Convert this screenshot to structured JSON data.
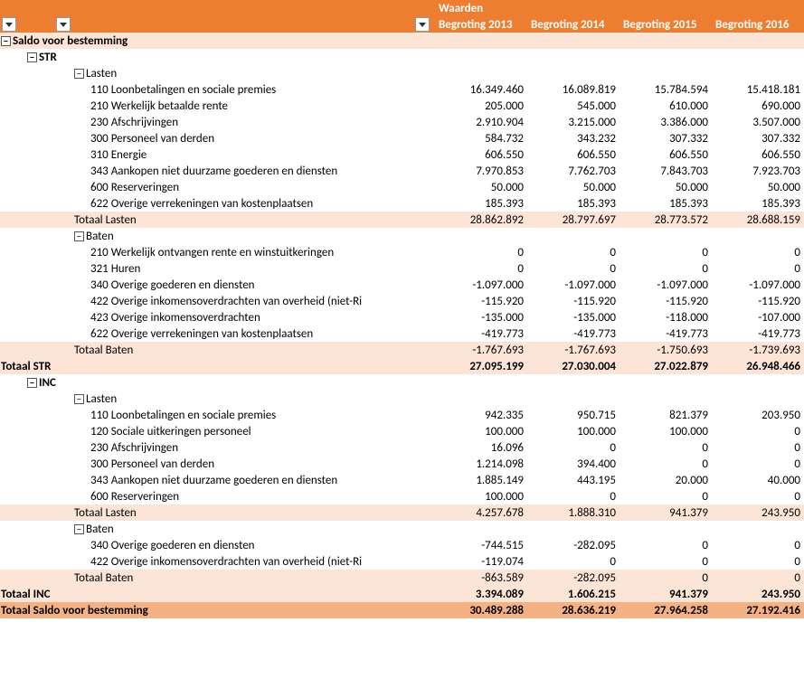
{
  "header": {
    "waarden": "Waarden",
    "cols": [
      "Begroting 2013",
      "Begroting 2014",
      "Begroting 2015",
      "Begroting  2016"
    ]
  },
  "topGroup": {
    "expander": "−",
    "label": "Saldo voor bestemming"
  },
  "sections": [
    {
      "expander": "−",
      "code": "STR",
      "groups": [
        {
          "expander": "−",
          "label": "Lasten",
          "items": [
            {
              "label": "110 Loonbetalingen en sociale premies",
              "vals": [
                "16.349.460",
                "16.089.819",
                "15.784.594",
                "15.418.181"
              ]
            },
            {
              "label": "210 Werkelijk betaalde rente",
              "vals": [
                "205.000",
                "545.000",
                "610.000",
                "690.000"
              ]
            },
            {
              "label": "230 Afschrijvingen",
              "vals": [
                "2.910.904",
                "3.215.000",
                "3.386.000",
                "3.507.000"
              ]
            },
            {
              "label": "300 Personeel van derden",
              "vals": [
                "584.732",
                "343.232",
                "307.332",
                "307.332"
              ]
            },
            {
              "label": "310 Energie",
              "vals": [
                "606.550",
                "606.550",
                "606.550",
                "606.550"
              ]
            },
            {
              "label": "343 Aankopen niet duurzame goederen en diensten",
              "vals": [
                "7.970.853",
                "7.762.703",
                "7.843.703",
                "7.923.703"
              ]
            },
            {
              "label": "600 Reserveringen",
              "vals": [
                "50.000",
                "50.000",
                "50.000",
                "50.000"
              ]
            },
            {
              "label": "622 Overige verrekeningen van kostenplaatsen",
              "vals": [
                "185.393",
                "185.393",
                "185.393",
                "185.393"
              ]
            }
          ],
          "subtotal": {
            "label": "Totaal Lasten",
            "vals": [
              "28.862.892",
              "28.797.697",
              "28.773.572",
              "28.688.159"
            ]
          }
        },
        {
          "expander": "−",
          "label": "Baten",
          "items": [
            {
              "label": "210 Werkelijk ontvangen rente en winstuitkeringen",
              "vals": [
                "0",
                "0",
                "0",
                "0"
              ]
            },
            {
              "label": "321 Huren",
              "vals": [
                "0",
                "0",
                "0",
                "0"
              ]
            },
            {
              "label": "340 Overige goederen en diensten",
              "vals": [
                "-1.097.000",
                "-1.097.000",
                "-1.097.000",
                "-1.097.000"
              ]
            },
            {
              "label": "422 Overige inkomensoverdrachten van overheid (niet-Ri",
              "vals": [
                "-115.920",
                "-115.920",
                "-115.920",
                "-115.920"
              ]
            },
            {
              "label": "423 Overige inkomensoverdrachten",
              "vals": [
                "-135.000",
                "-135.000",
                "-118.000",
                "-107.000"
              ]
            },
            {
              "label": "622 Overige verrekeningen van kostenplaatsen",
              "vals": [
                "-419.773",
                "-419.773",
                "-419.773",
                "-419.773"
              ]
            }
          ],
          "subtotal": {
            "label": "Totaal Baten",
            "vals": [
              "-1.767.693",
              "-1.767.693",
              "-1.750.693",
              "-1.739.693"
            ]
          }
        }
      ],
      "sectionTotal": {
        "label": "Totaal STR",
        "vals": [
          "27.095.199",
          "27.030.004",
          "27.022.879",
          "26.948.466"
        ]
      }
    },
    {
      "expander": "−",
      "code": "INC",
      "groups": [
        {
          "expander": "−",
          "label": "Lasten",
          "items": [
            {
              "label": "110 Loonbetalingen en sociale premies",
              "vals": [
                "942.335",
                "950.715",
                "821.379",
                "203.950"
              ]
            },
            {
              "label": "120 Sociale uitkeringen personeel",
              "vals": [
                "100.000",
                "100.000",
                "100.000",
                "0"
              ]
            },
            {
              "label": "230 Afschrijvingen",
              "vals": [
                "16.096",
                "0",
                "0",
                "0"
              ]
            },
            {
              "label": "300 Personeel van derden",
              "vals": [
                "1.214.098",
                "394.400",
                "0",
                "0"
              ]
            },
            {
              "label": "343 Aankopen niet duurzame goederen en diensten",
              "vals": [
                "1.885.149",
                "443.195",
                "20.000",
                "40.000"
              ]
            },
            {
              "label": "600 Reserveringen",
              "vals": [
                "100.000",
                "0",
                "0",
                "0"
              ]
            }
          ],
          "subtotal": {
            "label": "Totaal Lasten",
            "vals": [
              "4.257.678",
              "1.888.310",
              "941.379",
              "243.950"
            ]
          }
        },
        {
          "expander": "−",
          "label": "Baten",
          "items": [
            {
              "label": "340 Overige goederen en diensten",
              "vals": [
                "-744.515",
                "-282.095",
                "0",
                "0"
              ]
            },
            {
              "label": "422 Overige inkomensoverdrachten van overheid (niet-Ri",
              "vals": [
                "-119.074",
                "0",
                "0",
                "0"
              ]
            }
          ],
          "subtotal": {
            "label": "Totaal Baten",
            "vals": [
              "-863.589",
              "-282.095",
              "0",
              "0"
            ]
          }
        }
      ],
      "sectionTotal": {
        "label": "Totaal INC",
        "vals": [
          "3.394.089",
          "1.606.215",
          "941.379",
          "243.950"
        ]
      }
    }
  ],
  "grandTotal": {
    "label": "Totaal Saldo voor bestemming",
    "vals": [
      "30.489.288",
      "28.636.219",
      "27.964.258",
      "27.192.416"
    ]
  }
}
